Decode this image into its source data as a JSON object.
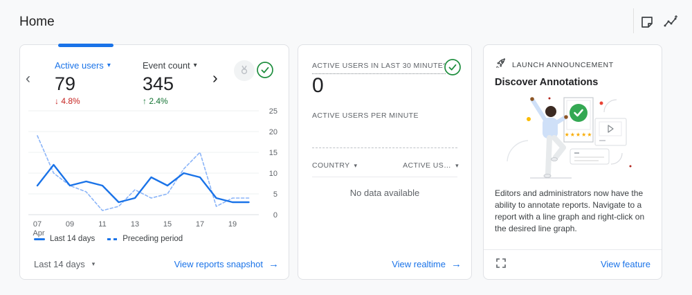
{
  "page": {
    "title": "Home"
  },
  "cards": {
    "overview": {
      "metrics": [
        {
          "label": "Active users",
          "value": "79",
          "delta": "4.8%",
          "trend": "down"
        },
        {
          "label": "Event count",
          "value": "345",
          "delta": "2.4%",
          "trend": "up"
        }
      ],
      "period_selector": "Last 14 days",
      "footer_link": "View reports snapshot"
    },
    "realtime": {
      "title": "ACTIVE USERS IN LAST 30 MINUTES",
      "value": "0",
      "per_minute_label": "ACTIVE USERS PER MINUTE",
      "table": {
        "columns": [
          "COUNTRY",
          "ACTIVE US…"
        ]
      },
      "empty_message": "No data available",
      "footer_link": "View realtime"
    },
    "announcement": {
      "eyebrow": "LAUNCH ANNOUNCEMENT",
      "title": "Discover Annotations",
      "body": "Editors and administrators now have the ability to annotate reports. Navigate to a report with a line graph and right-click on the desired line graph.",
      "footer_link": "View feature"
    }
  },
  "chart_data": {
    "type": "line",
    "x": [
      "07",
      "08",
      "09",
      "10",
      "11",
      "12",
      "13",
      "14",
      "15",
      "16",
      "17",
      "18",
      "19",
      "20"
    ],
    "x_month": "Apr",
    "xticks": [
      "07",
      "09",
      "11",
      "13",
      "15",
      "17",
      "19"
    ],
    "yticks": [
      0,
      5,
      10,
      15,
      20,
      25
    ],
    "ylim": [
      0,
      25
    ],
    "legend_position": "bottom",
    "series": [
      {
        "name": "Last 14 days",
        "style": "solid",
        "values": [
          7,
          12,
          7,
          8,
          7,
          3,
          4,
          9,
          7,
          10,
          9,
          4,
          3,
          3
        ]
      },
      {
        "name": "Preceding period",
        "style": "dashed",
        "values": [
          19,
          10,
          7,
          5.5,
          1,
          2,
          6,
          4,
          5,
          11,
          15,
          2,
          4,
          4
        ]
      }
    ]
  },
  "icons": {
    "caret": "▾",
    "arrow_right": "→",
    "arrow_up": "↑",
    "arrow_down": "↓",
    "chevron_left": "‹",
    "chevron_right": "›",
    "stars": "★★★★★"
  },
  "colors": {
    "accent": "#1a73e8",
    "negative": "#c5221f",
    "positive": "#137333",
    "muted": "#5f6368",
    "border": "#dfe1e5",
    "green": "#34a853"
  }
}
